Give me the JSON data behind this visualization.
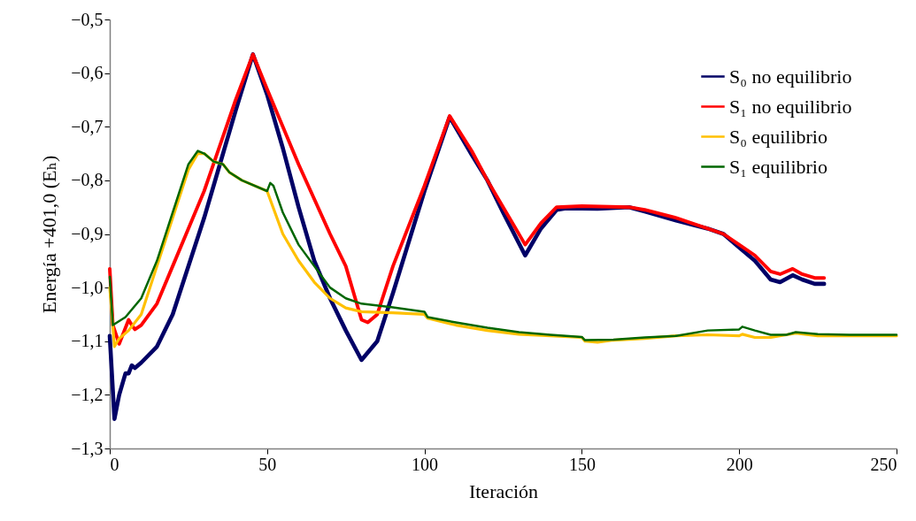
{
  "chart_data": {
    "type": "line",
    "xlabel": "Iteración",
    "ylabel": "Energía +401,0 (Eₕ)",
    "xlim": [
      0,
      250
    ],
    "xticks": [
      0,
      50,
      100,
      150,
      200,
      250
    ],
    "ylim": [
      -1.3,
      -0.5
    ],
    "yticks": [
      {
        "value": -1.3,
        "label": "−1,3"
      },
      {
        "value": -1.2,
        "label": "−1,2"
      },
      {
        "value": -1.1,
        "label": "−1,1"
      },
      {
        "value": -1.0,
        "label": "−1,0"
      },
      {
        "value": -0.9,
        "label": "−0,9"
      },
      {
        "value": -0.8,
        "label": "−0,8"
      },
      {
        "value": -0.7,
        "label": "−0,7"
      },
      {
        "value": -0.6,
        "label": "−0,6"
      },
      {
        "value": -0.5,
        "label": "−0,5"
      }
    ],
    "grid": false,
    "legend": "top right",
    "marker": "none",
    "line_style": "solid",
    "series": [
      {
        "name": "S₀ no equilibrio",
        "color": "#000066",
        "x": [
          0,
          1.5,
          3,
          5,
          6,
          7,
          8,
          10,
          15,
          20,
          30,
          40,
          45.5,
          50,
          55,
          60,
          65,
          70,
          75,
          80,
          85,
          90,
          100,
          108,
          115,
          120,
          125,
          132,
          137,
          142,
          145,
          155,
          165,
          170,
          180,
          190,
          195,
          200,
          205,
          210,
          213,
          217,
          220,
          224,
          227
        ],
        "values": [
          -1.09,
          -1.245,
          -1.2,
          -1.16,
          -1.16,
          -1.145,
          -1.15,
          -1.14,
          -1.11,
          -1.05,
          -0.87,
          -0.67,
          -0.565,
          -0.64,
          -0.74,
          -0.85,
          -0.95,
          -1.02,
          -1.08,
          -1.135,
          -1.1,
          -1.01,
          -0.82,
          -0.682,
          -0.752,
          -0.8,
          -0.86,
          -0.94,
          -0.89,
          -0.855,
          -0.852,
          -0.853,
          -0.85,
          -0.858,
          -0.875,
          -0.89,
          -0.9,
          -0.925,
          -0.95,
          -0.985,
          -0.99,
          -0.977,
          -0.985,
          -0.993,
          -0.993
        ]
      },
      {
        "name": "S₁ no equilibrio",
        "color": "#ff0000",
        "x": [
          0,
          1,
          3,
          4,
          6,
          7,
          8,
          10,
          15,
          20,
          30,
          40,
          45.5,
          50,
          60,
          70,
          75,
          80,
          82,
          85,
          90,
          100,
          108,
          115,
          120,
          125,
          132,
          137,
          142,
          150,
          165,
          170,
          180,
          190,
          195,
          200,
          205,
          210,
          213,
          217,
          220,
          224,
          227
        ],
        "values": [
          -0.965,
          -1.07,
          -1.105,
          -1.09,
          -1.06,
          -1.07,
          -1.078,
          -1.07,
          -1.03,
          -0.96,
          -0.82,
          -0.65,
          -0.565,
          -0.63,
          -0.77,
          -0.9,
          -0.96,
          -1.06,
          -1.065,
          -1.05,
          -0.96,
          -0.81,
          -0.68,
          -0.745,
          -0.8,
          -0.85,
          -0.92,
          -0.88,
          -0.85,
          -0.848,
          -0.85,
          -0.855,
          -0.87,
          -0.89,
          -0.9,
          -0.92,
          -0.94,
          -0.97,
          -0.975,
          -0.965,
          -0.975,
          -0.982,
          -0.982
        ]
      },
      {
        "name": "S₀ equilibrio",
        "color": "#ffc000",
        "x": [
          0,
          1.5,
          3,
          6,
          10,
          15,
          20,
          25,
          28,
          30,
          33,
          36,
          38,
          42,
          50,
          55,
          60,
          65,
          70,
          75,
          80,
          90,
          100,
          101,
          110,
          120,
          130,
          140,
          150,
          151,
          155,
          160,
          170,
          180,
          190,
          200,
          201,
          205,
          210,
          215,
          218,
          225,
          250
        ],
        "values": [
          -1.0,
          -1.11,
          -1.095,
          -1.08,
          -1.05,
          -0.96,
          -0.87,
          -0.78,
          -0.75,
          -0.75,
          -0.765,
          -0.77,
          -0.785,
          -0.8,
          -0.82,
          -0.9,
          -0.95,
          -0.99,
          -1.02,
          -1.038,
          -1.045,
          -1.047,
          -1.05,
          -1.057,
          -1.07,
          -1.08,
          -1.087,
          -1.09,
          -1.093,
          -1.1,
          -1.102,
          -1.098,
          -1.095,
          -1.09,
          -1.088,
          -1.09,
          -1.087,
          -1.093,
          -1.093,
          -1.088,
          -1.085,
          -1.09,
          -1.09
        ]
      },
      {
        "name": "S₁ equilibrio",
        "color": "#006600",
        "x": [
          0,
          1,
          5,
          10,
          15,
          20,
          25,
          28,
          30,
          33,
          36,
          38,
          42,
          50,
          51,
          52,
          55,
          60,
          65,
          70,
          75,
          80,
          90,
          100,
          101,
          110,
          120,
          130,
          140,
          150,
          151,
          160,
          170,
          180,
          190,
          200,
          201,
          205,
          210,
          215,
          218,
          225,
          235,
          250
        ],
        "values": [
          -0.98,
          -1.07,
          -1.055,
          -1.02,
          -0.95,
          -0.86,
          -0.77,
          -0.745,
          -0.75,
          -0.765,
          -0.77,
          -0.785,
          -0.8,
          -0.82,
          -0.805,
          -0.81,
          -0.86,
          -0.92,
          -0.96,
          -1.0,
          -1.02,
          -1.03,
          -1.037,
          -1.045,
          -1.055,
          -1.065,
          -1.075,
          -1.083,
          -1.088,
          -1.092,
          -1.098,
          -1.097,
          -1.093,
          -1.09,
          -1.08,
          -1.078,
          -1.073,
          -1.08,
          -1.088,
          -1.088,
          -1.083,
          -1.087,
          -1.088,
          -1.088
        ]
      }
    ]
  }
}
